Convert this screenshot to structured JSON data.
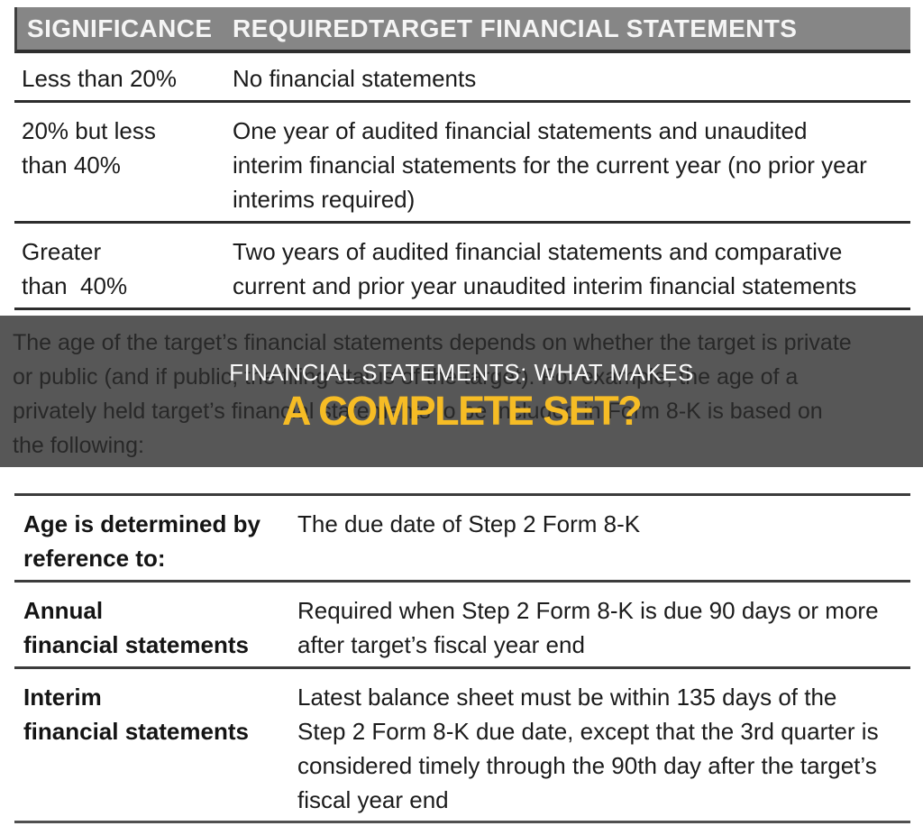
{
  "colors": {
    "header_bar": "#868686",
    "header_text": "#f5f5f5",
    "band_background": "#575757",
    "band_text": "#282828",
    "overlay_title": "#fafafa",
    "overlay_accent": "#f6bc25",
    "table_border": "#2d2d2d"
  },
  "significance_table": {
    "headers": {
      "col1": "SIGNIFICANCE",
      "col2": "REQUIREDTARGET FINANCIAL STATEMENTS"
    },
    "rows": [
      {
        "significance": "Less than 20%",
        "requirement": "No financial statements"
      },
      {
        "significance": "20% but less\nthan 40%",
        "requirement": "One year of audited financial statements and unaudited\ninterim financial statements for the current year (no prior year\ninterims required)"
      },
      {
        "significance": "Greater\nthan  40%",
        "requirement": "Two years of audited financial statements and comparative\ncurrent and prior year unaudited interim financial statements"
      }
    ]
  },
  "banner": {
    "paragraph": "The age of the target’s financial statements depends on whether the target is private\nor public (and if public, the filing status of the target). For example, the age of a\nprivately held target’s financial statements to be included in Form 8-K is based on\nthe following:",
    "overlay_line1": "FINANCIAL STATEMENTS: WHAT MAKES",
    "overlay_line2": "A COMPLETE SET?"
  },
  "age_table": {
    "rows": [
      {
        "label": "Age is determined by\nreference to:",
        "value": "The due date of Step 2 Form 8-K"
      },
      {
        "label": "Annual\nfinancial statements",
        "value": "Required when Step 2 Form 8-K is due 90 days or more\nafter target’s fiscal year end"
      },
      {
        "label": "Interim\nfinancial statements",
        "value": "Latest balance sheet must be within 135 days of the\nStep 2 Form 8-K due date, except that the 3rd quarter is\nconsidered timely through the 90th day after the target’s\nfiscal year end"
      }
    ]
  }
}
